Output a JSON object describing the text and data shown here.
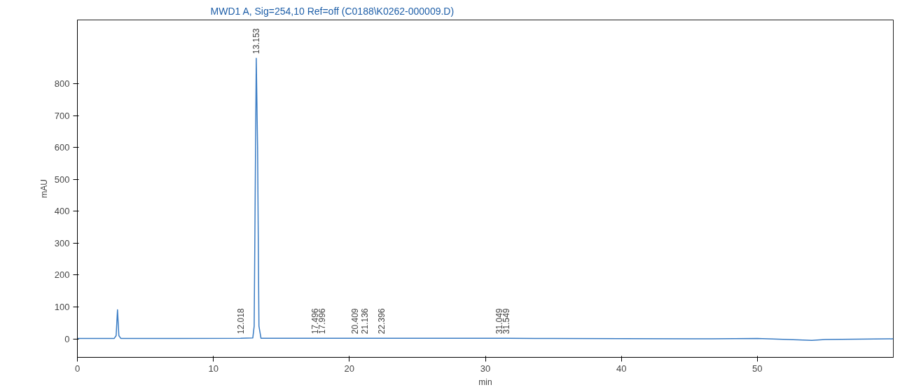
{
  "chart_data": {
    "type": "line",
    "title": "MWD1 A, Sig=254,10 Ref=off (C0188\\K0262-000009.D)",
    "xlabel": "min",
    "ylabel": "mAU",
    "x": [
      0,
      2.7,
      2.85,
      2.95,
      3.05,
      3.2,
      12.0,
      12.9,
      13.0,
      13.1,
      13.153,
      13.25,
      13.35,
      13.5,
      17.5,
      20.4,
      22.4,
      31.0,
      31.5,
      35,
      45,
      50,
      53,
      54,
      55,
      60
    ],
    "series": [
      {
        "color": "#3a7cc4",
        "values": [
          1,
          1,
          10,
          91,
          10,
          1,
          2,
          3,
          40,
          600,
          880,
          600,
          40,
          2,
          2,
          2,
          2,
          2,
          2,
          1,
          0,
          1,
          -3,
          -5,
          -2,
          0
        ]
      }
    ],
    "xlim": [
      0,
      60
    ],
    "ylim": [
      -58,
      1000
    ],
    "xticks": [
      0,
      10,
      20,
      30,
      40,
      50
    ],
    "yticks": [
      0,
      100,
      200,
      300,
      400,
      500,
      600,
      700,
      800
    ],
    "grid": false,
    "marker": "none",
    "line_style": "solid",
    "annotations": [
      {
        "text": "12.018",
        "x": 12.018,
        "y": 2
      },
      {
        "text": "13.153",
        "x": 13.153,
        "y": 880
      },
      {
        "text": "17.496",
        "x": 17.496,
        "y": 2
      },
      {
        "text": "17.996",
        "x": 17.996,
        "y": 2
      },
      {
        "text": "20.409",
        "x": 20.409,
        "y": 2
      },
      {
        "text": "21.136",
        "x": 21.136,
        "y": 2
      },
      {
        "text": "22.396",
        "x": 22.396,
        "y": 2
      },
      {
        "text": "31.049",
        "x": 31.049,
        "y": 2
      },
      {
        "text": "31.549",
        "x": 31.549,
        "y": 2
      }
    ]
  }
}
